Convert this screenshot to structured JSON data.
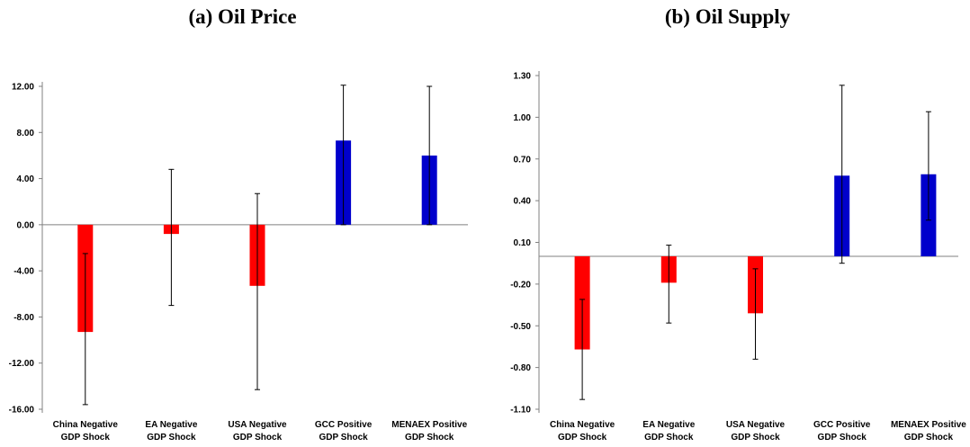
{
  "chart_data": [
    {
      "type": "bar",
      "title": "(a) Oil Price",
      "categories": [
        "China Negative GDP Shock",
        "EA Negative GDP Shock",
        "USA Negative GDP Shock",
        "GCC Positive GDP Shock",
        "MENAEX Positive GDP Shock"
      ],
      "category_lines": [
        [
          "China Negative",
          "GDP Shock"
        ],
        [
          "EA Negative",
          "GDP Shock"
        ],
        [
          "USA Negative",
          "GDP Shock"
        ],
        [
          "GCC Positive",
          "GDP Shock"
        ],
        [
          "MENAEX Positive",
          "GDP Shock"
        ]
      ],
      "values": [
        -9.3,
        -0.8,
        -5.3,
        7.3,
        6.0
      ],
      "error_low": [
        -15.6,
        -7.0,
        -14.3,
        0.0,
        0.0
      ],
      "error_high": [
        -2.5,
        4.8,
        2.7,
        12.1,
        12.0
      ],
      "bar_colors": [
        "#ff0000",
        "#ff0000",
        "#ff0000",
        "#0000cc",
        "#0000cc"
      ],
      "ylim": [
        -16,
        12
      ],
      "yticks": [
        12,
        8,
        4,
        0,
        -4,
        -8,
        -12,
        -16
      ],
      "ytick_labels": [
        "12.00",
        "8.00",
        "4.00",
        "0.00",
        "-4.00",
        "-8.00",
        "-12.00",
        "-16.00"
      ],
      "xlabel": "",
      "ylabel": ""
    },
    {
      "type": "bar",
      "title": "(b) Oil Supply",
      "categories": [
        "China Negative GDP Shock",
        "EA Negative GDP Shock",
        "USA Negative GDP Shock",
        "GCC Positive GDP Shock",
        "MENAEX Positive GDP Shock"
      ],
      "category_lines": [
        [
          "China Negative",
          "GDP Shock"
        ],
        [
          "EA Negative",
          "GDP Shock"
        ],
        [
          "USA Negative",
          "GDP Shock"
        ],
        [
          "GCC Positive",
          "GDP Shock"
        ],
        [
          "MENAEX Positive",
          "GDP Shock"
        ]
      ],
      "values": [
        -0.67,
        -0.19,
        -0.41,
        0.58,
        0.59
      ],
      "error_low": [
        -1.03,
        -0.48,
        -0.74,
        -0.05,
        0.26
      ],
      "error_high": [
        -0.31,
        0.08,
        -0.09,
        1.23,
        1.04
      ],
      "bar_colors": [
        "#ff0000",
        "#ff0000",
        "#ff0000",
        "#0000cc",
        "#0000cc"
      ],
      "baseline": 0.0,
      "ylim": [
        -1.1,
        1.3
      ],
      "yticks": [
        1.3,
        1.0,
        0.7,
        0.4,
        0.1,
        -0.2,
        -0.5,
        -0.8,
        -1.1
      ],
      "ytick_labels": [
        "1.30",
        "1.00",
        "0.70",
        "0.40",
        "0.10",
        "-0.20",
        "-0.50",
        "-0.80",
        "-1.10"
      ],
      "xlabel": "",
      "ylabel": ""
    }
  ]
}
